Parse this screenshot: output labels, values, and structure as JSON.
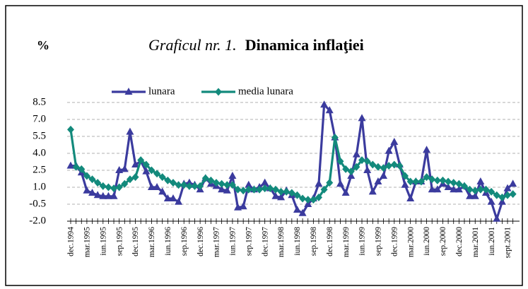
{
  "chart_data": {
    "type": "line",
    "unit_label": "%",
    "title_prefix": "Graficul nr. 1.",
    "title": "Dinamica inflaţiei",
    "categories": [
      "dec.1994",
      null,
      null,
      "mar.1995",
      null,
      null,
      "iun.1995",
      null,
      null,
      "sep.1995",
      null,
      null,
      "dec.1995",
      null,
      null,
      "mar.1996",
      null,
      null,
      "iun.1996",
      null,
      null,
      "sep.1996",
      null,
      null,
      "dec.1996",
      null,
      null,
      "mar.1997",
      null,
      null,
      "iun.1997",
      null,
      null,
      "sep.1997",
      null,
      null,
      "dec.1997",
      null,
      null,
      "mar.1998",
      null,
      null,
      "iun.1998",
      null,
      null,
      "sep.1998",
      null,
      null,
      "dec.1998",
      null,
      null,
      "mar.1999",
      null,
      null,
      "iun.1999",
      null,
      null,
      "sep.1999",
      null,
      null,
      "dec.1999",
      null,
      null,
      "mar.2000",
      null,
      null,
      "iun.2000",
      null,
      null,
      "sep.2000",
      null,
      null,
      "dec.2000",
      null,
      null,
      "mar.2001",
      null,
      null,
      "iun.2001",
      null,
      null,
      "sept.2001",
      null
    ],
    "series": [
      {
        "name": "lunara",
        "color": "#3b3b9e",
        "marker": "triangle",
        "values": [
          2.9,
          2.9,
          2.3,
          0.7,
          0.5,
          0.3,
          0.2,
          0.2,
          0.2,
          2.5,
          2.6,
          5.9,
          3.0,
          3.3,
          2.4,
          1.0,
          1.0,
          0.6,
          0.0,
          0.0,
          -0.3,
          1.3,
          1.4,
          1.2,
          0.8,
          1.8,
          1.3,
          1.1,
          0.8,
          0.7,
          2.0,
          -0.8,
          -0.7,
          1.2,
          0.8,
          1.0,
          1.4,
          0.9,
          0.2,
          0.1,
          0.7,
          0.3,
          -1.0,
          -1.3,
          -0.5,
          0.0,
          1.3,
          8.3,
          7.8,
          5.4,
          1.3,
          0.5,
          2.0,
          3.9,
          7.1,
          2.5,
          0.6,
          1.5,
          2.0,
          4.2,
          5.0,
          3.0,
          1.2,
          0.0,
          1.5,
          1.5,
          4.3,
          0.8,
          0.8,
          1.3,
          1.0,
          0.8,
          0.8,
          1.1,
          0.2,
          0.2,
          1.5,
          0.5,
          -0.3,
          -1.8,
          -0.3,
          0.9,
          1.3
        ]
      },
      {
        "name": "media lunara",
        "color": "#138a7c",
        "marker": "diamond",
        "values": [
          6.1,
          2.8,
          2.6,
          2.0,
          1.7,
          1.4,
          1.1,
          1.0,
          0.9,
          1.0,
          1.3,
          1.7,
          1.9,
          3.4,
          3.0,
          2.5,
          2.2,
          1.9,
          1.6,
          1.4,
          1.2,
          1.2,
          1.1,
          1.1,
          1.1,
          1.8,
          1.6,
          1.4,
          1.3,
          1.2,
          1.2,
          0.8,
          0.7,
          0.8,
          0.8,
          0.8,
          0.9,
          0.9,
          0.8,
          0.6,
          0.6,
          0.5,
          0.3,
          0.0,
          -0.1,
          -0.1,
          0.1,
          0.8,
          1.4,
          5.4,
          3.3,
          2.6,
          2.4,
          2.8,
          3.4,
          3.3,
          3.0,
          2.8,
          2.7,
          2.9,
          3.0,
          2.9,
          2.0,
          1.5,
          1.5,
          1.5,
          1.9,
          1.7,
          1.6,
          1.6,
          1.5,
          1.4,
          1.3,
          1.1,
          0.8,
          0.7,
          0.8,
          0.8,
          0.6,
          0.3,
          0.1,
          0.3,
          0.4
        ]
      }
    ],
    "ylim": [
      -2.0,
      8.5
    ],
    "yticks": [
      {
        "value": -2.0,
        "label": "-2.0"
      },
      -0.5,
      {
        "value": 1.0,
        "label": "1.0"
      },
      2.5,
      {
        "value": 4.0,
        "label": "4.0"
      },
      5.5,
      {
        "value": 7.0,
        "label": "7.0"
      },
      8.5
    ],
    "grid": true,
    "legend": "top"
  }
}
